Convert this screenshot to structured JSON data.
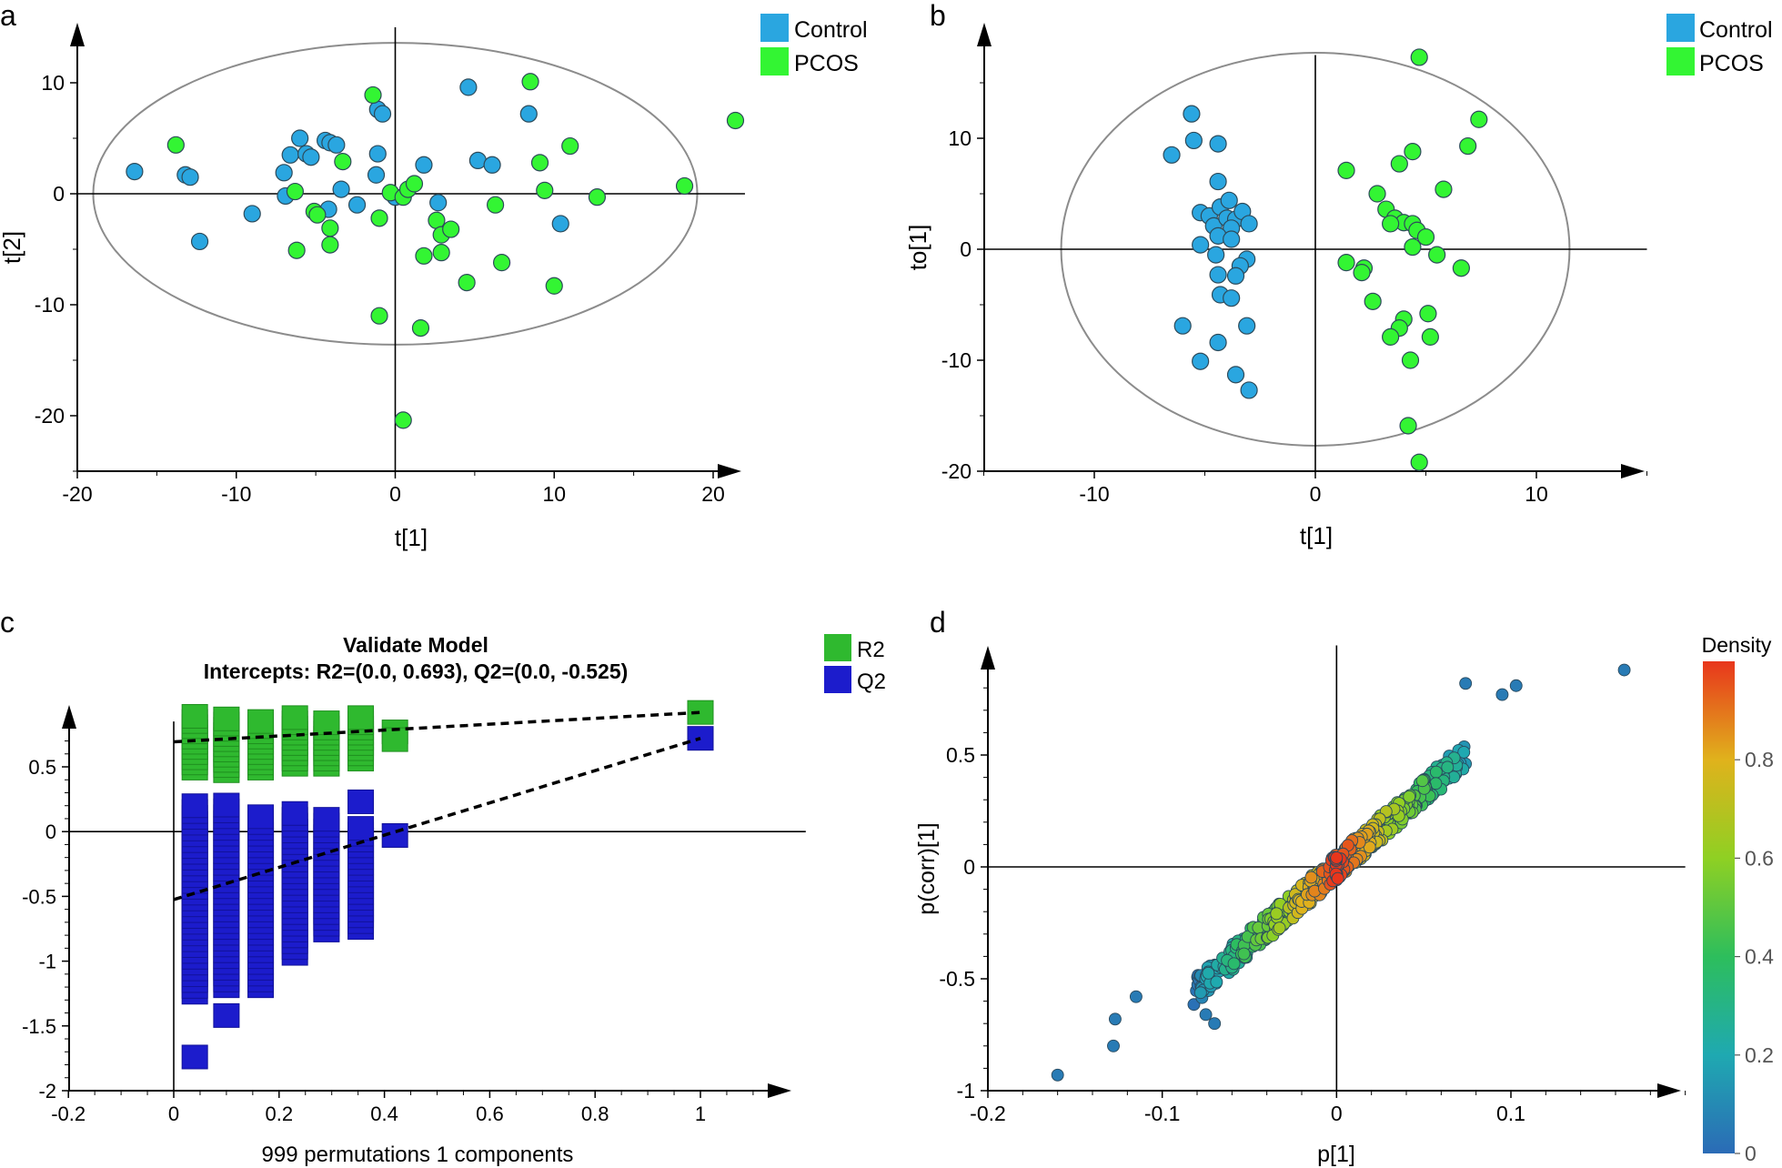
{
  "colors": {
    "control": "#2aa6e0",
    "pcos": "#33f533",
    "r2": "#2fb92f",
    "q2": "#1c1ccc",
    "axis": "#000000",
    "ellipse": "#8c8c8c",
    "tick_label": "#000000"
  },
  "chart_data": [
    {
      "panel_label": "a",
      "type": "scatter",
      "xlabel": "t[1]",
      "ylabel": "t[2]",
      "xlim": [
        -20,
        22
      ],
      "ylim": [
        -25,
        15
      ],
      "xticks": [
        -20,
        -10,
        0,
        10,
        20
      ],
      "yticks": [
        -20,
        -10,
        0,
        10
      ],
      "ellipse": {
        "cx": 0,
        "cy": 0,
        "rx": 19,
        "ry": 13.6
      },
      "legend": {
        "position": "top-right",
        "entries": [
          "Control",
          "PCOS"
        ]
      },
      "series": [
        {
          "name": "Control",
          "points": [
            [
              -16.4,
              2.0
            ],
            [
              -13.2,
              1.7
            ],
            [
              -12.9,
              1.5
            ],
            [
              -12.3,
              -4.3
            ],
            [
              -9.0,
              -1.8
            ],
            [
              -7.0,
              1.9
            ],
            [
              -6.9,
              -0.2
            ],
            [
              -6.6,
              3.5
            ],
            [
              -6.0,
              5.0
            ],
            [
              -5.6,
              3.6
            ],
            [
              -5.3,
              3.3
            ],
            [
              -4.4,
              4.8
            ],
            [
              -4.1,
              4.6
            ],
            [
              -3.7,
              4.4
            ],
            [
              -4.2,
              -1.4
            ],
            [
              -3.4,
              0.4
            ],
            [
              -2.4,
              -1.0
            ],
            [
              -1.1,
              3.6
            ],
            [
              -1.1,
              7.6
            ],
            [
              -0.8,
              7.2
            ],
            [
              -1.2,
              1.7
            ],
            [
              0.0,
              -0.3
            ],
            [
              1.8,
              2.6
            ],
            [
              2.7,
              -0.8
            ],
            [
              4.6,
              9.6
            ],
            [
              5.2,
              3.0
            ],
            [
              6.1,
              2.6
            ],
            [
              8.4,
              7.2
            ],
            [
              10.4,
              -2.7
            ]
          ]
        },
        {
          "name": "PCOS",
          "points": [
            [
              -13.8,
              4.4
            ],
            [
              -6.3,
              0.2
            ],
            [
              -6.2,
              -5.1
            ],
            [
              -5.1,
              -1.6
            ],
            [
              -4.9,
              -1.9
            ],
            [
              -4.1,
              -3.1
            ],
            [
              -4.1,
              -4.6
            ],
            [
              -3.3,
              2.9
            ],
            [
              -1.4,
              8.9
            ],
            [
              -1.0,
              -2.2
            ],
            [
              -1.0,
              -11.0
            ],
            [
              -0.3,
              0.1
            ],
            [
              0.5,
              -0.3
            ],
            [
              0.5,
              -20.4
            ],
            [
              0.8,
              0.4
            ],
            [
              1.2,
              0.9
            ],
            [
              1.6,
              -12.1
            ],
            [
              1.8,
              -5.6
            ],
            [
              2.6,
              -2.4
            ],
            [
              2.9,
              -5.3
            ],
            [
              2.9,
              -3.7
            ],
            [
              3.5,
              -3.2
            ],
            [
              4.5,
              -8.0
            ],
            [
              6.3,
              -1.0
            ],
            [
              6.7,
              -6.2
            ],
            [
              8.5,
              10.1
            ],
            [
              9.1,
              2.8
            ],
            [
              9.4,
              0.3
            ],
            [
              10.0,
              -8.3
            ],
            [
              11.0,
              4.3
            ],
            [
              12.7,
              -0.3
            ],
            [
              18.2,
              0.7
            ],
            [
              21.4,
              6.6
            ]
          ]
        }
      ]
    },
    {
      "panel_label": "b",
      "type": "scatter",
      "xlabel": "t[1]",
      "ylabel": "to[1]",
      "xlim": [
        -15,
        15
      ],
      "ylim": [
        -20,
        17.5
      ],
      "xticks": [
        -10,
        0,
        10
      ],
      "yticks": [
        -20,
        -10,
        0,
        10
      ],
      "ellipse": {
        "cx": 0,
        "cy": 0,
        "rx": 11.5,
        "ry": 17.7
      },
      "legend": {
        "position": "top-right",
        "entries": [
          "Control",
          "PCOS"
        ]
      },
      "series": [
        {
          "name": "Control",
          "points": [
            [
              -6.5,
              8.5
            ],
            [
              -5.6,
              12.2
            ],
            [
              -5.5,
              9.8
            ],
            [
              -4.4,
              9.5
            ],
            [
              -4.4,
              6.1
            ],
            [
              -5.2,
              3.3
            ],
            [
              -4.8,
              3.0
            ],
            [
              -4.3,
              3.8
            ],
            [
              -3.9,
              4.4
            ],
            [
              -4.6,
              2.1
            ],
            [
              -4.0,
              2.8
            ],
            [
              -3.6,
              2.7
            ],
            [
              -3.3,
              3.4
            ],
            [
              -3.0,
              2.3
            ],
            [
              -3.8,
              1.9
            ],
            [
              -4.4,
              1.2
            ],
            [
              -3.8,
              0.9
            ],
            [
              -5.2,
              0.4
            ],
            [
              -4.5,
              -0.5
            ],
            [
              -3.1,
              -0.9
            ],
            [
              -3.4,
              -1.5
            ],
            [
              -4.4,
              -2.3
            ],
            [
              -3.6,
              -2.4
            ],
            [
              -4.3,
              -4.1
            ],
            [
              -3.8,
              -4.4
            ],
            [
              -6.0,
              -6.9
            ],
            [
              -3.1,
              -6.9
            ],
            [
              -4.4,
              -8.4
            ],
            [
              -5.2,
              -10.1
            ],
            [
              -3.6,
              -11.3
            ],
            [
              -3.0,
              -12.7
            ]
          ]
        },
        {
          "name": "PCOS",
          "points": [
            [
              4.7,
              17.3
            ],
            [
              7.4,
              11.7
            ],
            [
              6.9,
              9.3
            ],
            [
              4.4,
              8.8
            ],
            [
              3.8,
              7.7
            ],
            [
              1.4,
              7.1
            ],
            [
              5.8,
              5.4
            ],
            [
              2.8,
              5.0
            ],
            [
              3.2,
              3.6
            ],
            [
              3.6,
              2.8
            ],
            [
              4.0,
              2.4
            ],
            [
              4.4,
              2.3
            ],
            [
              4.6,
              1.7
            ],
            [
              3.4,
              2.3
            ],
            [
              4.4,
              0.2
            ],
            [
              5.0,
              1.1
            ],
            [
              5.5,
              -0.5
            ],
            [
              1.4,
              -1.2
            ],
            [
              2.2,
              -1.7
            ],
            [
              2.1,
              -2.1
            ],
            [
              6.6,
              -1.7
            ],
            [
              2.6,
              -4.7
            ],
            [
              5.1,
              -5.8
            ],
            [
              4.0,
              -6.3
            ],
            [
              3.8,
              -7.1
            ],
            [
              3.4,
              -7.9
            ],
            [
              5.2,
              -7.9
            ],
            [
              4.3,
              -10.0
            ],
            [
              4.2,
              -15.9
            ],
            [
              4.7,
              -19.2
            ]
          ]
        }
      ]
    },
    {
      "panel_label": "c",
      "type": "scatter",
      "title": "Validate Model",
      "subtitle": "Intercepts: R2=(0.0, 0.693), Q2=(0.0, -0.525)",
      "xlabel": "999 permutations 1 components",
      "ylabel": "",
      "xlim": [
        -0.2,
        1.15
      ],
      "ylim": [
        -2,
        0.9
      ],
      "xticks": [
        -0.2,
        0,
        0.2,
        0.4,
        0.6,
        0.8,
        1
      ],
      "yticks": [
        -2,
        -1.5,
        -1,
        -0.5,
        0,
        0.5
      ],
      "legend": {
        "position": "top-right",
        "entries": [
          "R2",
          "Q2"
        ]
      },
      "permutation_columns": [
        {
          "x": 0.04,
          "r2": [
            0.49,
            0.9
          ],
          "q2": [
            -1.24,
            0.21
          ]
        },
        {
          "x": 0.1,
          "r2": [
            0.47,
            0.88
          ],
          "q2": [
            -1.19,
            0.21
          ]
        },
        {
          "x": 0.165,
          "r2": [
            0.49,
            0.88
          ],
          "q2": [
            -1.19,
            0.15
          ]
        },
        {
          "x": 0.23,
          "r2": [
            0.52,
            0.89
          ],
          "q2": [
            -0.94,
            0.18
          ]
        },
        {
          "x": 0.29,
          "r2": [
            0.52,
            0.86
          ],
          "q2": [
            -0.76,
            0.12
          ]
        },
        {
          "x": 0.355,
          "r2": [
            0.56,
            0.88
          ],
          "q2": [
            -0.74,
            0.05
          ]
        }
      ],
      "extra_points": {
        "r2": [
          [
            0.42,
            0.77
          ],
          [
            0.42,
            0.71
          ],
          [
            1.0,
            0.92
          ]
        ],
        "q2": [
          [
            0.355,
            0.23
          ],
          [
            0.42,
            -0.03
          ],
          [
            0.04,
            -1.74
          ],
          [
            0.1,
            -1.42
          ],
          [
            1.0,
            0.72
          ]
        ]
      },
      "regression_lines": [
        {
          "name": "R2",
          "x": [
            0,
            1
          ],
          "y": [
            0.693,
            0.92
          ]
        },
        {
          "name": "Q2",
          "x": [
            0,
            1
          ],
          "y": [
            -0.525,
            0.72
          ]
        }
      ]
    },
    {
      "panel_label": "d",
      "type": "scatter",
      "xlabel": "p[1]",
      "ylabel": "p(corr)[1]",
      "xlim": [
        -0.2,
        0.2
      ],
      "ylim": [
        -1,
        1
      ],
      "xticks": [
        -0.2,
        -0.1,
        0,
        0.1
      ],
      "yticks": [
        -1,
        -0.5,
        0,
        0.5
      ],
      "colorbar": {
        "title": "Density",
        "range": [
          0,
          1
        ],
        "ticks": [
          0,
          0.2,
          0.4,
          0.6,
          0.8
        ]
      },
      "trend": {
        "slope": 6.8,
        "spread": 0.06
      },
      "outliers": [
        [
          -0.16,
          -0.93
        ],
        [
          -0.128,
          -0.8
        ],
        [
          -0.127,
          -0.68
        ],
        [
          -0.115,
          -0.58
        ],
        [
          0.165,
          0.88
        ],
        [
          0.074,
          0.82
        ],
        [
          0.095,
          0.77
        ],
        [
          0.103,
          0.81
        ],
        [
          -0.075,
          -0.66
        ],
        [
          -0.07,
          -0.7
        ]
      ]
    }
  ]
}
